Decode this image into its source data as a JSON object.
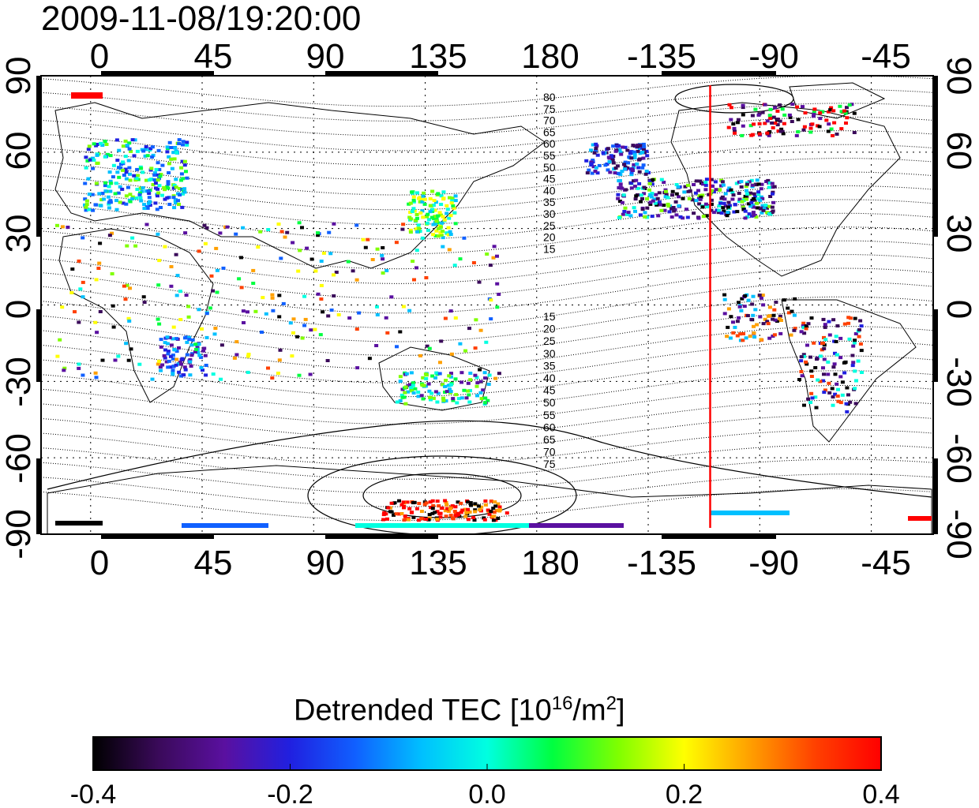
{
  "map": {
    "timestamp": "2009-11-08/19:20:00",
    "top_lon_ticks": [
      "0",
      "45",
      "90",
      "135",
      "180",
      "-135",
      "-90",
      "-45"
    ],
    "bottom_lon_ticks": [
      "0",
      "45",
      "90",
      "135",
      "180",
      "-135",
      "-90",
      "-45"
    ],
    "left_lat_ticks": [
      "90",
      "60",
      "30",
      "0",
      "-30",
      "-60",
      "-90"
    ],
    "right_lat_ticks": [
      "90",
      "60",
      "30",
      "0",
      "-30",
      "-60",
      "-90"
    ],
    "north_contour_labels": [
      "80",
      "75",
      "70",
      "65",
      "60",
      "55",
      "50",
      "45",
      "40",
      "35",
      "30",
      "25",
      "20",
      "15"
    ],
    "south_contour_labels": [
      "15",
      "20",
      "25",
      "30",
      "35",
      "40",
      "45",
      "50",
      "55",
      "60",
      "65",
      "70",
      "75"
    ],
    "marker_line_lon": -110,
    "marker_color": "#ff0000"
  },
  "colorbar": {
    "title_main": "Detrended TEC  [10",
    "title_sup1": "16",
    "title_mid": "/m",
    "title_sup2": "2",
    "title_end": "]",
    "tick_labels": [
      "-0.4",
      "-0.2",
      "0.0",
      "0.2",
      "0.4"
    ],
    "min": -0.4,
    "max": 0.4,
    "colors": [
      "#000000",
      "#3a0a5a",
      "#5a10a0",
      "#2020e0",
      "#1060ff",
      "#00c0ff",
      "#00ffe0",
      "#00ff40",
      "#80ff00",
      "#ffff00",
      "#ffa000",
      "#ff4000",
      "#ff0000"
    ]
  }
}
